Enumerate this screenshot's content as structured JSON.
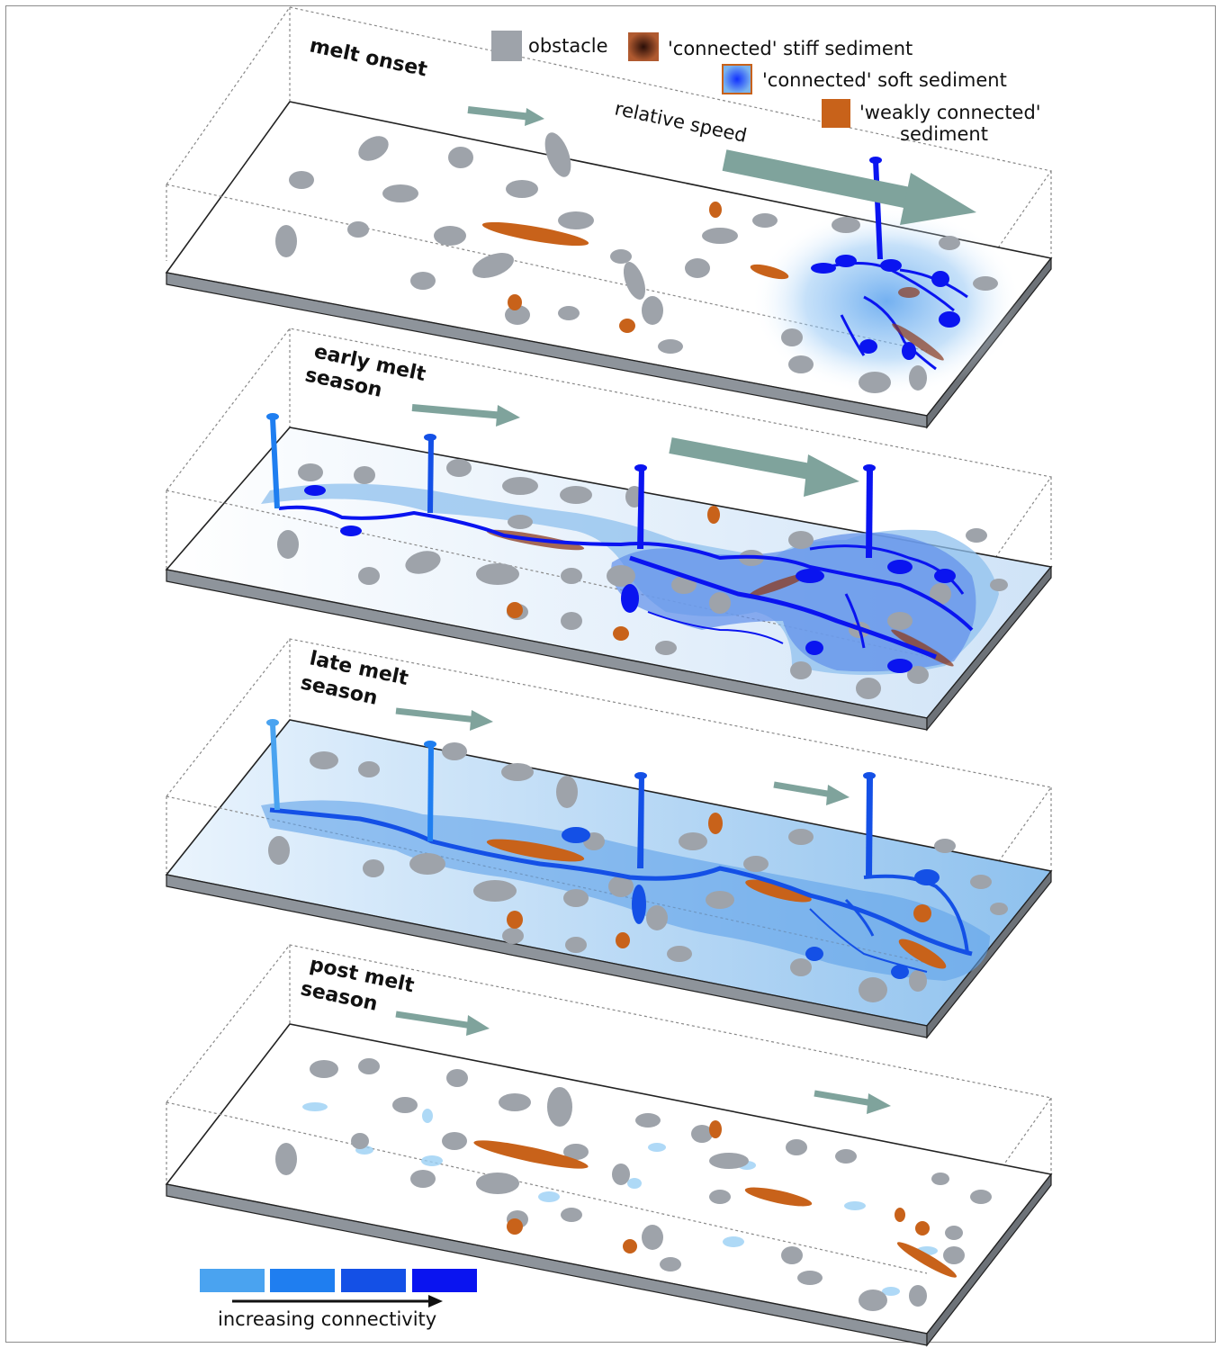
{
  "legend": {
    "obstacle": "obstacle",
    "stiff": "'connected' stiff sediment",
    "soft": "'connected' soft sediment",
    "weak_line1": "'weakly connected'",
    "weak_line2": "sediment",
    "speed": "relative speed"
  },
  "panels": [
    {
      "line1": "melt onset",
      "line2": ""
    },
    {
      "line1": "early melt",
      "line2": "season"
    },
    {
      "line1": "late melt",
      "line2": "season"
    },
    {
      "line1": "post melt",
      "line2": "season"
    }
  ],
  "scale": {
    "caption": "increasing connectivity",
    "colors": [
      "#4aa3f0",
      "#1f7ef0",
      "#1450e6",
      "#0a14f0"
    ]
  },
  "colors": {
    "obstacle": "#9ea3aa",
    "stiff_sediment": "#8c3a1e",
    "soft_sediment": "#2f6ee8",
    "weak_sediment": "#c8621a",
    "arrow": "#7fa39c"
  }
}
